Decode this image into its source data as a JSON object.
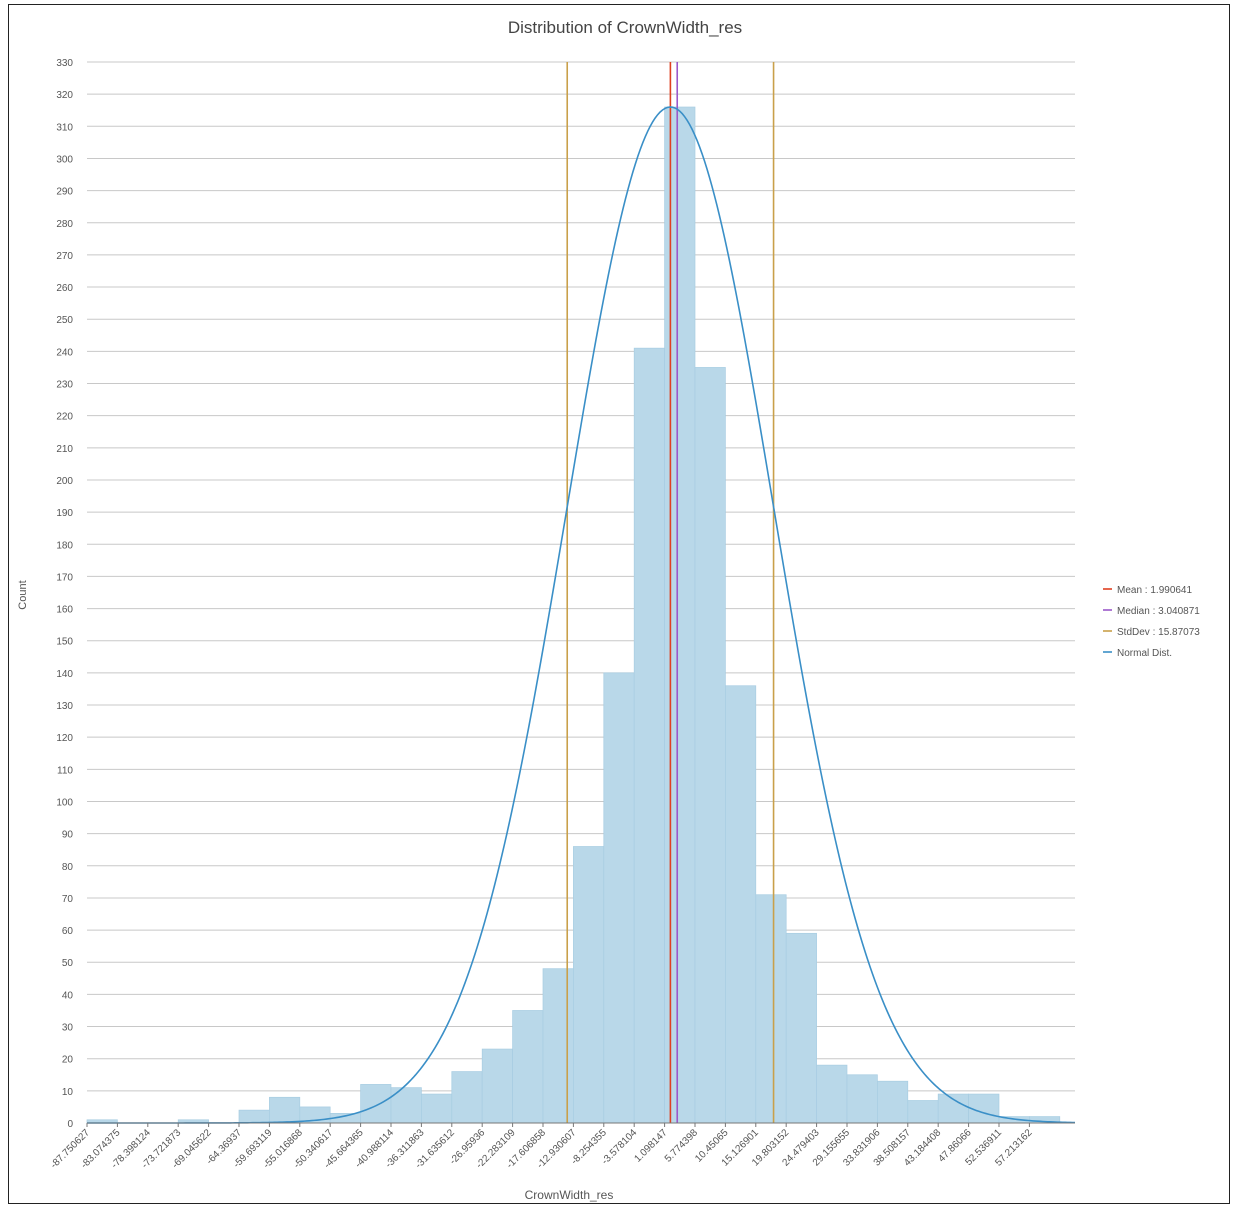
{
  "chart_data": {
    "type": "bar",
    "title": "Distribution of CrownWidth_res",
    "xlabel": "CrownWidth_res",
    "ylabel": "Count",
    "ylim": [
      0,
      330
    ],
    "yticks": [
      0,
      10,
      20,
      30,
      40,
      50,
      60,
      70,
      80,
      90,
      100,
      110,
      120,
      130,
      140,
      150,
      160,
      170,
      180,
      190,
      200,
      210,
      220,
      230,
      240,
      250,
      260,
      270,
      280,
      290,
      300,
      310,
      320,
      330
    ],
    "bin_start": -87.750627,
    "bin_width": 4.676251,
    "xlim": [
      -87.750627,
      64.23
    ],
    "bin_labels": [
      "-87.750627",
      "-83.074375",
      "-78.398124",
      "-73.721873",
      "-69.045622",
      "-64.36937",
      "-59.693119",
      "-55.016868",
      "-50.340617",
      "-45.664365",
      "-40.988114",
      "-36.311863",
      "-31.635612",
      "-26.95936",
      "-22.283109",
      "-17.606858",
      "-12.930607",
      "-8.254355",
      "-3.578104",
      "1.098147",
      "5.774398",
      "10.45065",
      "15.126901",
      "19.803152",
      "24.479403",
      "29.155655",
      "33.831906",
      "38.508157",
      "43.184408",
      "47.86066",
      "52.536911",
      "57.213162"
    ],
    "values": [
      1,
      0,
      0,
      1,
      0,
      4,
      8,
      5,
      3,
      12,
      11,
      9,
      16,
      23,
      35,
      48,
      86,
      140,
      241,
      316,
      235,
      136,
      71,
      59,
      18,
      15,
      13,
      7,
      9,
      9,
      2,
      2
    ],
    "bar_color": "#b9d8e9",
    "grid": true,
    "reference_lines": [
      {
        "name": "Mean : 1.990641",
        "x": 1.990641,
        "color": "#e04020"
      },
      {
        "name": "Median : 3.040871",
        "x": 3.040871,
        "color": "#9b59c9"
      },
      {
        "name": "StdDev : 15.87073",
        "x": -13.880089,
        "color": "#c9a04a"
      },
      {
        "name": "",
        "x": 17.861371,
        "color": "#c9a04a"
      }
    ],
    "normal_dist": {
      "name": "Normal Dist.",
      "mean": 1.990641,
      "std": 15.87073,
      "peak": 316,
      "color": "#3a8fc7"
    },
    "legend_position": "right"
  }
}
